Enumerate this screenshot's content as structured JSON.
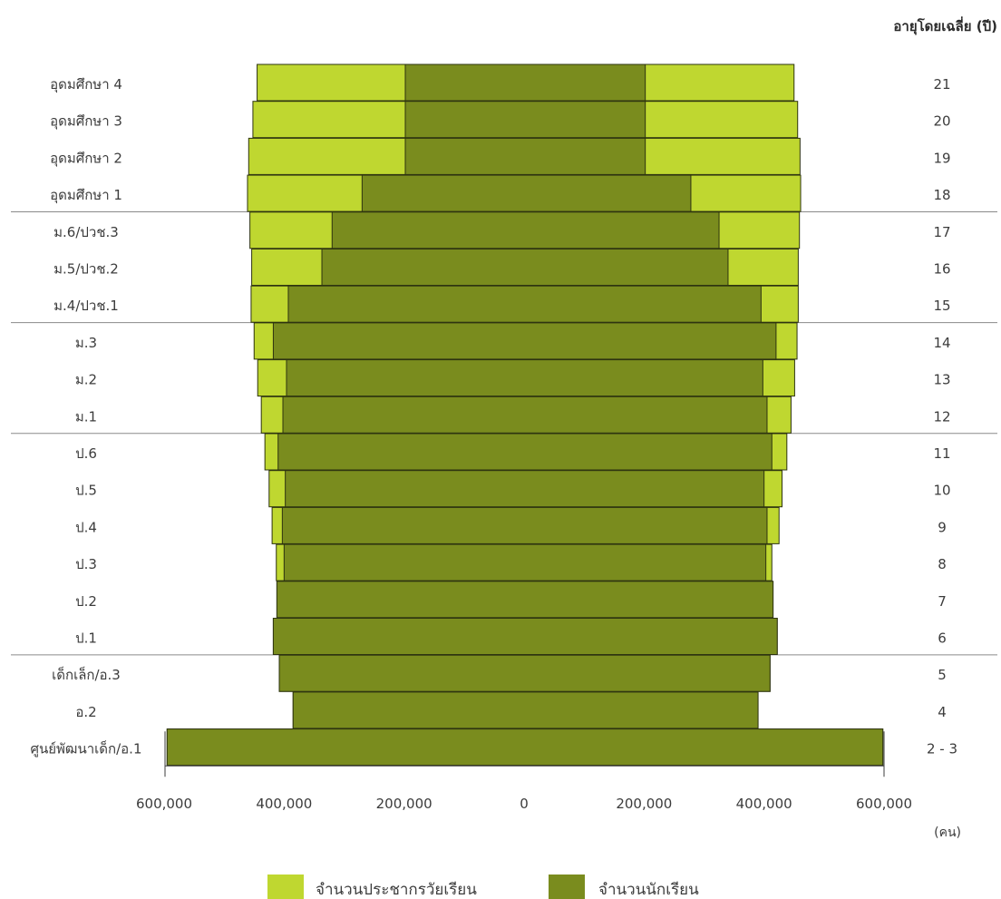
{
  "chart_data": {
    "type": "bar",
    "subtype": "population-pyramid",
    "age_header": "อายุโดยเฉลี่ย (ปี)",
    "unit_label": "(คน)",
    "x_ticks": [
      "600,000",
      "400,000",
      "200,000",
      "0",
      "200,000",
      "400,000",
      "600,000"
    ],
    "xlim": [
      -600000,
      600000
    ],
    "categories": [
      "อุดมศึกษา 4",
      "อุดมศึกษา 3",
      "อุดมศึกษา 2",
      "อุดมศึกษา 1",
      "ม.6/ปวช.3",
      "ม.5/ปวช.2",
      "ม.4/ปวช.1",
      "ม.3",
      "ม.2",
      "ม.1",
      "ป.6",
      "ป.5",
      "ป.4",
      "ป.3",
      "ป.2",
      "ป.1",
      "เด็กเล็ก/อ.3",
      "อ.2",
      "ศูนย์พัฒนาเด็ก/อ.1"
    ],
    "ages": [
      "21",
      "20",
      "19",
      "18",
      "17",
      "16",
      "15",
      "14",
      "13",
      "12",
      "11",
      "10",
      "9",
      "8",
      "7",
      "6",
      "5",
      "4",
      "2 - 3"
    ],
    "group_separators_after": [
      3,
      6,
      9,
      15
    ],
    "series": [
      {
        "name": "จำนวนประชากรวัยเรียน",
        "color": "#bfd730",
        "left": [
          445000,
          452000,
          459000,
          461000,
          457000,
          454000,
          455000,
          450000,
          444000,
          438000,
          432000,
          425000,
          420000,
          413000,
          412000,
          418000,
          408000,
          385000,
          595000
        ],
        "right": [
          450000,
          456000,
          460000,
          461000,
          459000,
          457000,
          457000,
          455000,
          451000,
          445000,
          438000,
          430000,
          425000,
          413000,
          415000,
          422000,
          410000,
          390000,
          598000
        ]
      },
      {
        "name": "จำนวนนักเรียน",
        "color": "#7a8c1e",
        "left": [
          198000,
          198000,
          198000,
          270000,
          320000,
          337000,
          393000,
          418000,
          396000,
          402000,
          410000,
          398000,
          403000,
          400000,
          412000,
          418000,
          408000,
          385000,
          595000
        ],
        "right": [
          202000,
          202000,
          202000,
          278000,
          325000,
          340000,
          395000,
          420000,
          398000,
          405000,
          413000,
          400000,
          405000,
          403000,
          415000,
          422000,
          410000,
          390000,
          598000
        ]
      }
    ],
    "legend_position": "bottom-center"
  }
}
